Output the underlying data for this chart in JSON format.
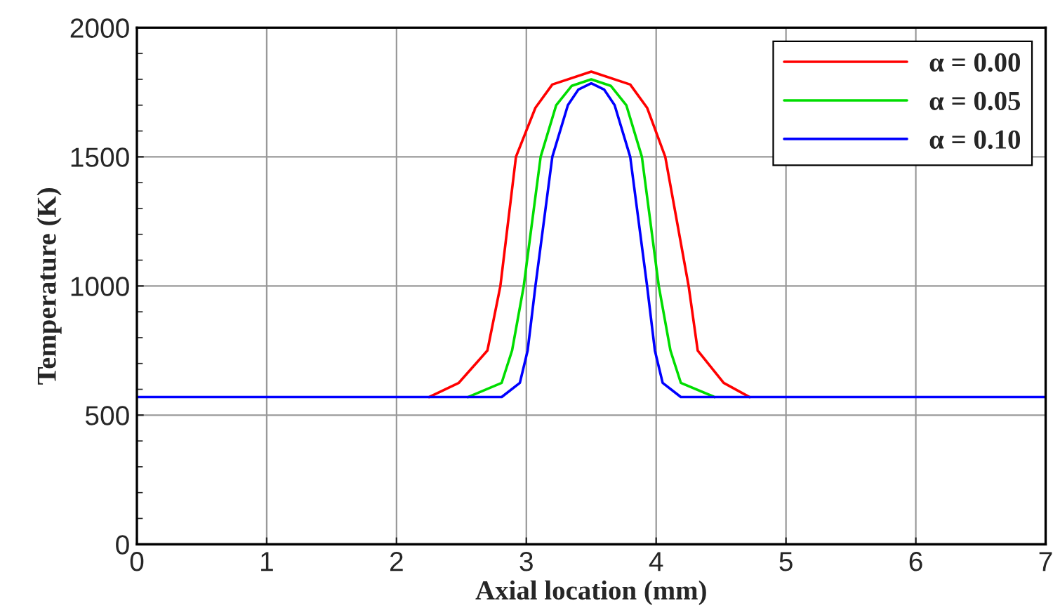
{
  "chart_data": {
    "type": "line",
    "xlabel": "Axial location (mm)",
    "ylabel": "Temperature (K)",
    "xlim": [
      0,
      7
    ],
    "ylim": [
      0,
      2000
    ],
    "xticks": [
      0,
      1,
      2,
      3,
      4,
      5,
      6,
      7
    ],
    "yticks": [
      0,
      500,
      1000,
      1500,
      2000
    ],
    "grid": true,
    "legend": "top right",
    "marker": "none",
    "line_style": "solid",
    "series": [
      {
        "name": "α = 0.00",
        "color": "#ff0000",
        "x": [
          2.25,
          2.48,
          2.7,
          2.8,
          2.92,
          3.07,
          3.2,
          3.5,
          3.8,
          3.93,
          4.07,
          4.25,
          4.32,
          4.52,
          4.72
        ],
        "values": [
          570,
          625,
          750,
          1000,
          1500,
          1690,
          1780,
          1830,
          1780,
          1690,
          1500,
          1000,
          750,
          625,
          570
        ]
      },
      {
        "name": "α = 0.05",
        "color": "#00dd00",
        "x": [
          2.55,
          2.81,
          2.89,
          2.98,
          3.11,
          3.23,
          3.35,
          3.5,
          3.65,
          3.77,
          3.89,
          4.02,
          4.11,
          4.19,
          4.45
        ],
        "values": [
          570,
          625,
          750,
          1000,
          1500,
          1700,
          1775,
          1800,
          1775,
          1700,
          1500,
          1000,
          750,
          625,
          570
        ]
      },
      {
        "name": "α = 0.10",
        "color": "#0000ff",
        "x": [
          0,
          2.81,
          2.95,
          3.01,
          3.07,
          3.2,
          3.32,
          3.4,
          3.5,
          3.6,
          3.68,
          3.8,
          3.93,
          3.99,
          4.05,
          4.19,
          7
        ],
        "values": [
          570,
          570,
          625,
          750,
          1000,
          1500,
          1700,
          1760,
          1785,
          1760,
          1700,
          1500,
          1000,
          750,
          625,
          570,
          570
        ]
      }
    ]
  }
}
